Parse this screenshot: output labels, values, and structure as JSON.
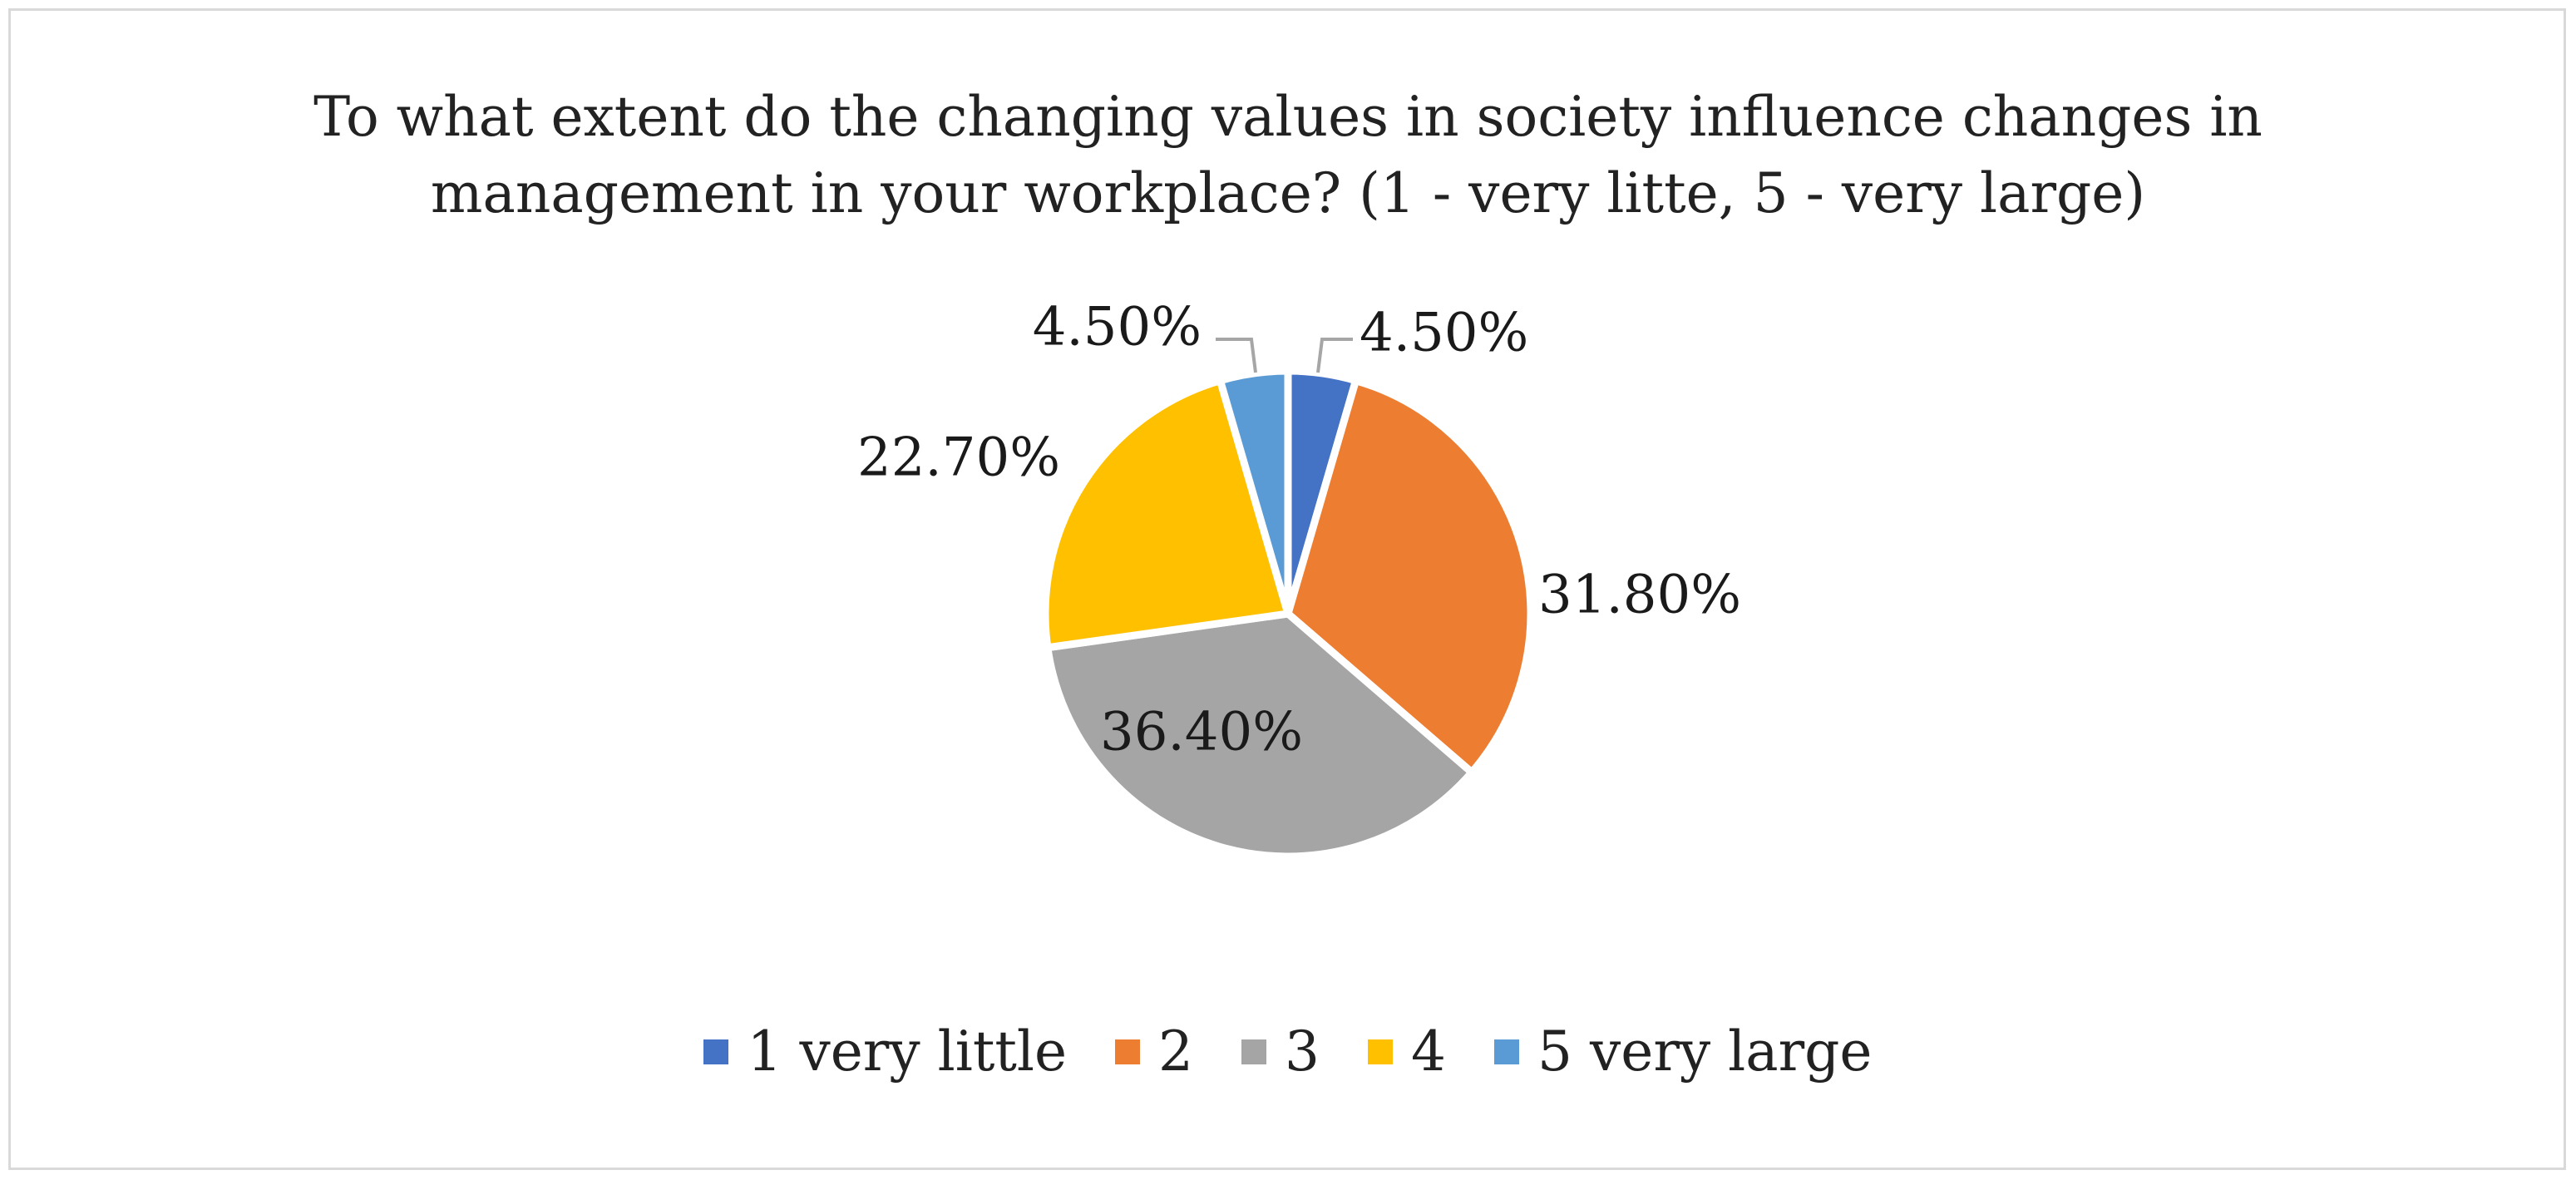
{
  "chart_data": {
    "type": "pie",
    "title_lines": [
      "To what extent do the changing values in society influence changes in",
      "management in your workplace? (1 - very litte, 5 - very large)"
    ],
    "categories": [
      "1 very little",
      "2",
      "3",
      "4",
      "5 very large"
    ],
    "values": [
      4.5,
      31.8,
      36.4,
      22.7,
      4.5
    ],
    "value_labels": [
      "4.50%",
      "31.80%",
      "36.40%",
      "22.70%",
      "4.50%"
    ],
    "colors": [
      "#4472c4",
      "#ed7d31",
      "#a5a5a5",
      "#ffc000",
      "#5b9bd5"
    ],
    "start_angle": "12 o'clock",
    "direction": "clockwise",
    "legend_position": "bottom"
  }
}
